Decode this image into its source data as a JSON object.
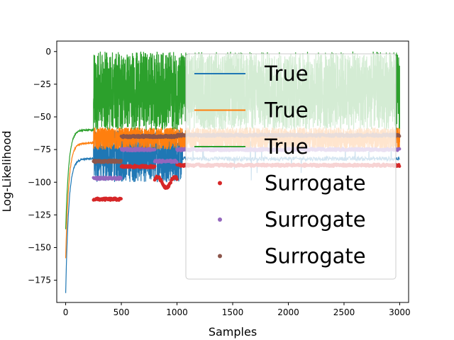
{
  "chart_data": {
    "type": "line",
    "xlabel": "Samples",
    "ylabel": "Log-Likelihood",
    "xlim": [
      -80,
      3080
    ],
    "ylim": [
      -192,
      8
    ],
    "xticks": [
      0,
      500,
      1000,
      1500,
      2000,
      2500,
      3000
    ],
    "yticks": [
      0,
      -25,
      -50,
      -75,
      -100,
      -125,
      -150,
      -175
    ],
    "legend_position": "upper right",
    "series": [
      {
        "name": "True",
        "kind": "line",
        "color": "#1f77b4",
        "start": -185,
        "plateau": -82,
        "rise_until": 250,
        "noise_from": 250,
        "noise_range": [
          -100,
          -60
        ],
        "dense_until": 1050,
        "sparse_to": 3000,
        "max_spike": 0
      },
      {
        "name": "True",
        "kind": "line",
        "color": "#ff7f0e",
        "start": -158,
        "plateau": -70,
        "rise_until": 250,
        "noise_from": 250,
        "noise_range": [
          -75,
          -58
        ],
        "dense_until": 3000,
        "sparse_to": 3000,
        "max_spike": 0
      },
      {
        "name": "True",
        "kind": "line",
        "color": "#2ca02c",
        "start": -136,
        "plateau": -60,
        "rise_until": 250,
        "noise_from": 250,
        "noise_range": [
          -60,
          0
        ],
        "dense_until": 3000,
        "sparse_to": 3000,
        "max_spike": 0
      },
      {
        "name": "Surrogate",
        "kind": "scatter",
        "color": "#d62728",
        "segments": [
          {
            "x": [
              250,
              500
            ],
            "y": -113
          },
          {
            "x": [
              500,
              800
            ],
            "y": -88
          },
          {
            "x": [
              800,
              1000
            ],
            "y": -100,
            "wobble": 4
          },
          {
            "x": [
              1000,
              3000
            ],
            "y": -87
          }
        ]
      },
      {
        "name": "Surrogate",
        "kind": "scatter",
        "color": "#9467bd",
        "segments": [
          {
            "x": [
              250,
              500
            ],
            "y": -97
          },
          {
            "x": [
              500,
              800
            ],
            "y": -75
          },
          {
            "x": [
              800,
              1000
            ],
            "y": -84
          },
          {
            "x": [
              1000,
              3000
            ],
            "y": -75
          }
        ]
      },
      {
        "name": "Surrogate",
        "kind": "scatter",
        "color": "#8c564b",
        "segments": [
          {
            "x": [
              250,
              500
            ],
            "y": -84
          },
          {
            "x": [
              500,
              1000
            ],
            "y": -65
          },
          {
            "x": [
              1000,
              3000
            ],
            "y": -64
          }
        ]
      }
    ]
  }
}
